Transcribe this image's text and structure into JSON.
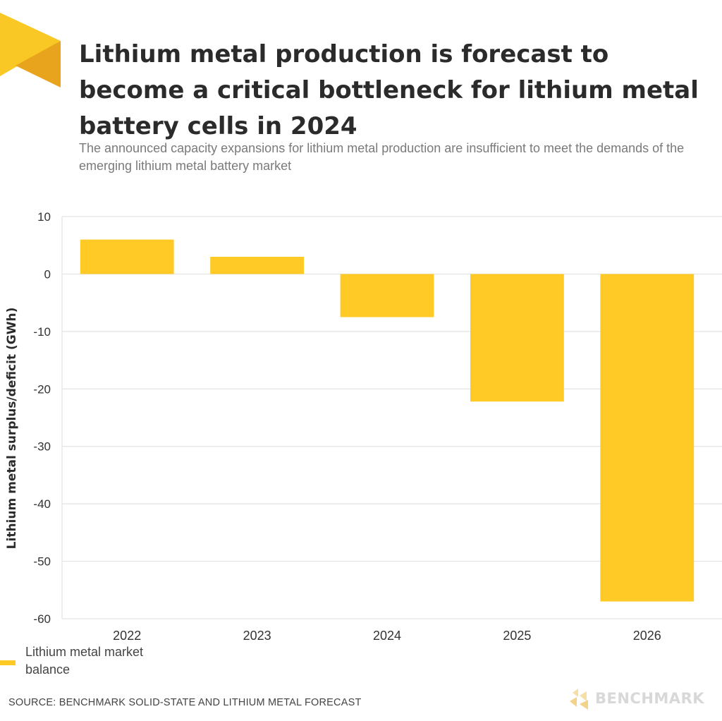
{
  "header": {
    "title": "Lithium metal production is forecast to become a critical bottleneck for lithium metal battery cells in 2024",
    "subtitle": "The announced capacity expansions for lithium metal production are insufficient to meet the demands of the emerging lithium metal battery market",
    "accent_color": "#F9C825"
  },
  "footer": {
    "source": "SOURCE: BENCHMARK SOLID-STATE AND LITHIUM METAL FORECAST",
    "brand": "BENCHMARK",
    "brand_icon": "benchmark-logo-icon"
  },
  "chart_data": {
    "type": "bar",
    "categories": [
      "2022",
      "2023",
      "2024",
      "2025",
      "2026"
    ],
    "series": [
      {
        "name": "Lithium metal market balance",
        "values": [
          6,
          3,
          -7.5,
          -22.2,
          -57
        ],
        "color": "#FFC926"
      }
    ],
    "xlabel": "",
    "ylabel": "Lithium metal surplus/deficit (GWh)",
    "ylim": [
      -60,
      10
    ],
    "yticks": [
      10,
      0,
      -10,
      -20,
      -30,
      -40,
      -50,
      -60
    ],
    "grid": true,
    "legend": "bottom-left"
  }
}
